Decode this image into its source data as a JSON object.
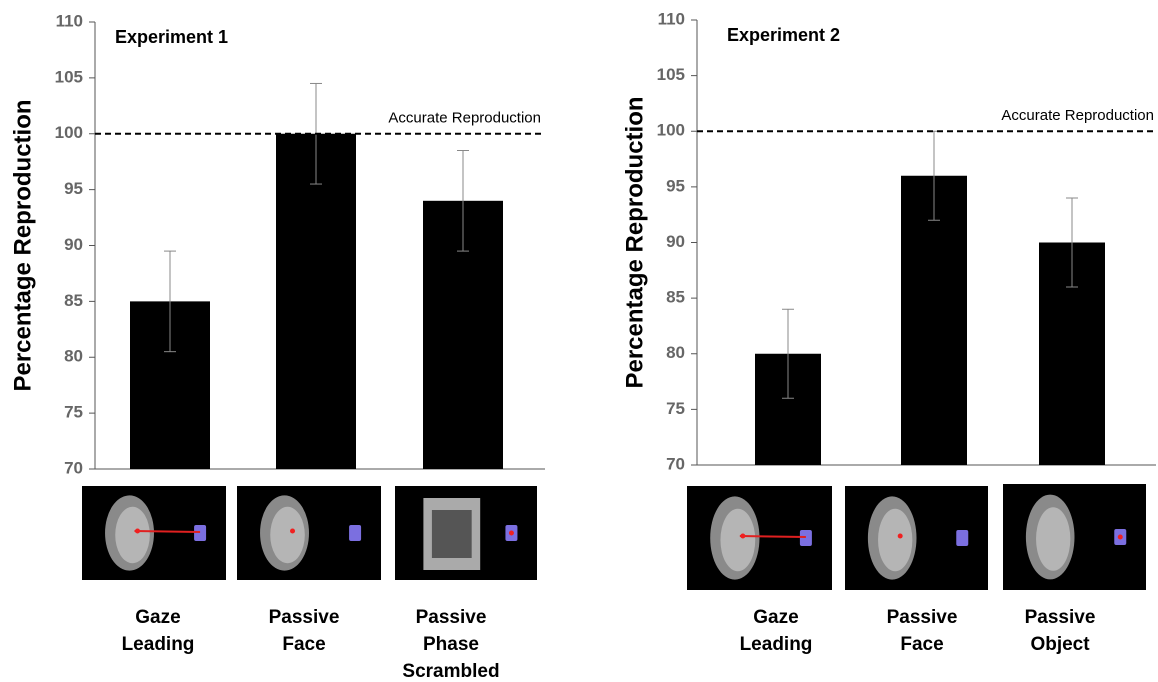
{
  "chart_data": [
    {
      "type": "bar",
      "title": "Experiment 1",
      "y_label": "Percentage Reproduction",
      "categories": [
        [
          "Gaze",
          "Leading"
        ],
        [
          "Passive",
          "Face"
        ],
        [
          "Passive",
          "Phase",
          "Scrambled"
        ]
      ],
      "values": [
        85,
        100,
        94
      ],
      "errors": [
        4.5,
        4.5,
        4.5
      ],
      "color": "#000000",
      "ylim": [
        70,
        110
      ],
      "yticks": [
        70,
        75,
        80,
        85,
        90,
        95,
        100,
        105,
        110
      ],
      "reference": {
        "value": 100,
        "label": "Accurate Reproduction"
      }
    },
    {
      "type": "bar",
      "title": "Experiment 2",
      "y_label": "Percentage Reproduction",
      "categories": [
        [
          "Gaze",
          "Leading"
        ],
        [
          "Passive",
          "Face"
        ],
        [
          "Passive",
          "Object"
        ]
      ],
      "values": [
        80,
        96,
        90
      ],
      "errors": [
        4,
        4,
        4
      ],
      "color": "#000000",
      "ylim": [
        70,
        110
      ],
      "yticks": [
        70,
        75,
        80,
        85,
        90,
        95,
        100,
        105,
        110
      ],
      "reference": {
        "value": 100,
        "label": "Accurate Reproduction"
      }
    }
  ]
}
